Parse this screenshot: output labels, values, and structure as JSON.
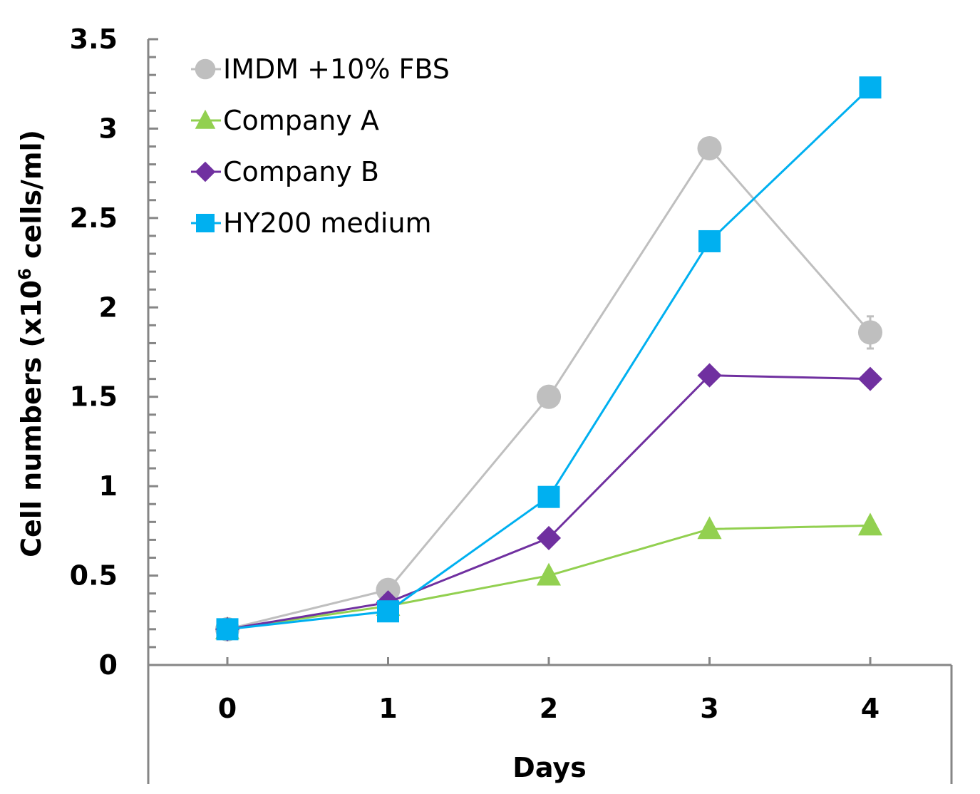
{
  "chart_data": {
    "type": "line",
    "title": "",
    "xlabel": "Days",
    "ylabel": "Cell numbers (x10⁶ cells/ml)",
    "ylabel_parts": {
      "before": "Cell numbers (x10",
      "sup": "6",
      "after": " cells/ml)"
    },
    "x": [
      0,
      1,
      2,
      3,
      4
    ],
    "x_tick_labels": [
      "0",
      "1",
      "2",
      "3",
      "4"
    ],
    "y_tick_labels": [
      "0",
      "0.5",
      "1",
      "1.5",
      "2",
      "2.5",
      "3",
      "3.5"
    ],
    "y_ticks": [
      0,
      0.5,
      1,
      1.5,
      2,
      2.5,
      3,
      3.5
    ],
    "ylim": [
      0,
      3.5
    ],
    "y_minor_step": 0.1,
    "xlim": [
      -0.5,
      4.5
    ],
    "grid": false,
    "legend_position": "top-left",
    "series": [
      {
        "name": "IMDM +10% FBS",
        "color": "#bfbfbf",
        "marker": "circle",
        "values": [
          0.2,
          0.42,
          1.5,
          2.89,
          1.86
        ],
        "errors": [
          0,
          0,
          0,
          0,
          0.09
        ]
      },
      {
        "name": "Company A",
        "color": "#92d050",
        "marker": "triangle",
        "values": [
          0.2,
          0.33,
          0.5,
          0.76,
          0.78
        ]
      },
      {
        "name": "Company B",
        "color": "#7030a0",
        "marker": "diamond",
        "values": [
          0.2,
          0.35,
          0.71,
          1.62,
          1.6
        ]
      },
      {
        "name": "HY200 medium",
        "color": "#00b0f0",
        "marker": "square",
        "values": [
          0.2,
          0.3,
          0.94,
          2.37,
          3.23
        ]
      }
    ]
  }
}
